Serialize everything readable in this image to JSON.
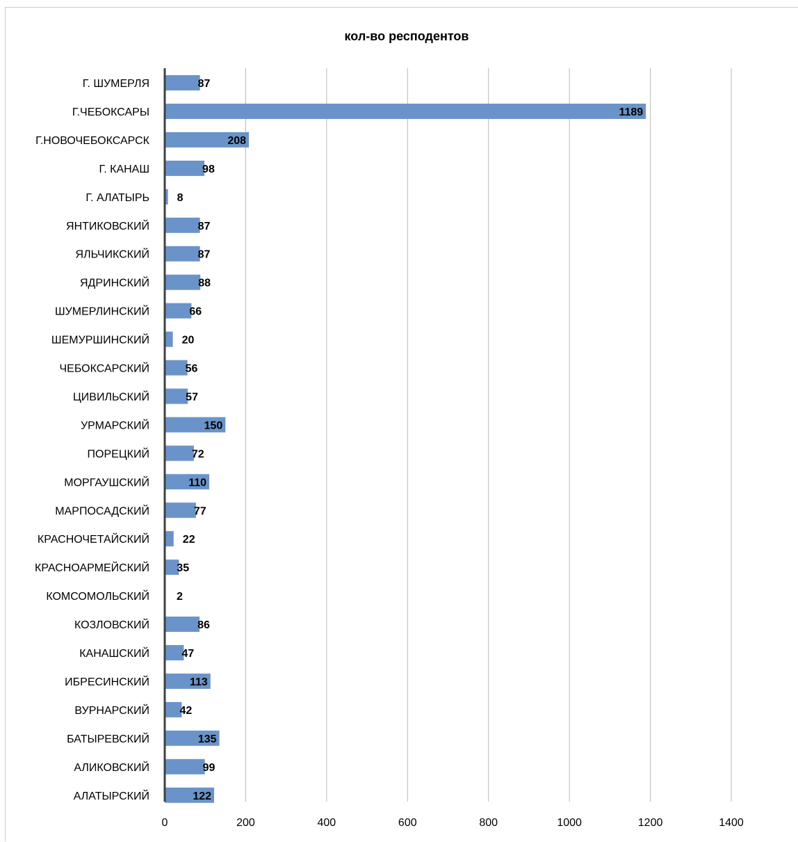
{
  "chart_data": {
    "type": "bar",
    "orientation": "horizontal",
    "title": "кол-во респодентов",
    "xlabel": "",
    "ylabel": "",
    "xlim": [
      0,
      1400
    ],
    "ticks": [
      0,
      200,
      400,
      600,
      800,
      1000,
      1200,
      1400
    ],
    "grid": true,
    "legend": "none",
    "bar_color": "#6a94c9",
    "categories": [
      "Г. ШУМЕРЛЯ",
      "Г.ЧЕБОКСАРЫ",
      "Г.НОВОЧЕБОКСАРСК",
      "Г. КАНАШ",
      "Г. АЛАТЫРЬ",
      "ЯНТИКОВСКИЙ",
      "ЯЛЬЧИКСКИЙ",
      "ЯДРИНСКИЙ",
      "ШУМЕРЛИНСКИЙ",
      "ШЕМУРШИНСКИЙ",
      "ЧЕБОКСАРСКИЙ",
      "ЦИВИЛЬСКИЙ",
      "УРМАРСКИЙ",
      "ПОРЕЦКИЙ",
      "МОРГАУШСКИЙ",
      "МАРПОСАДСКИЙ",
      "КРАСНОЧЕТАЙСКИЙ",
      "КРАСНОАРМЕЙСКИЙ",
      "КОМСОМОЛЬСКИЙ",
      "КОЗЛОВСКИЙ",
      "КАНАШСКИЙ",
      "ИБРЕСИНСКИЙ",
      "ВУРНАРСКИЙ",
      "БАТЫРЕВСКИЙ",
      "АЛИКОВСКИЙ",
      "АЛАТЫРСКИЙ"
    ],
    "values": [
      87,
      1189,
      208,
      98,
      8,
      87,
      87,
      88,
      66,
      20,
      56,
      57,
      150,
      72,
      110,
      77,
      22,
      35,
      2,
      86,
      47,
      113,
      42,
      135,
      99,
      122
    ]
  }
}
